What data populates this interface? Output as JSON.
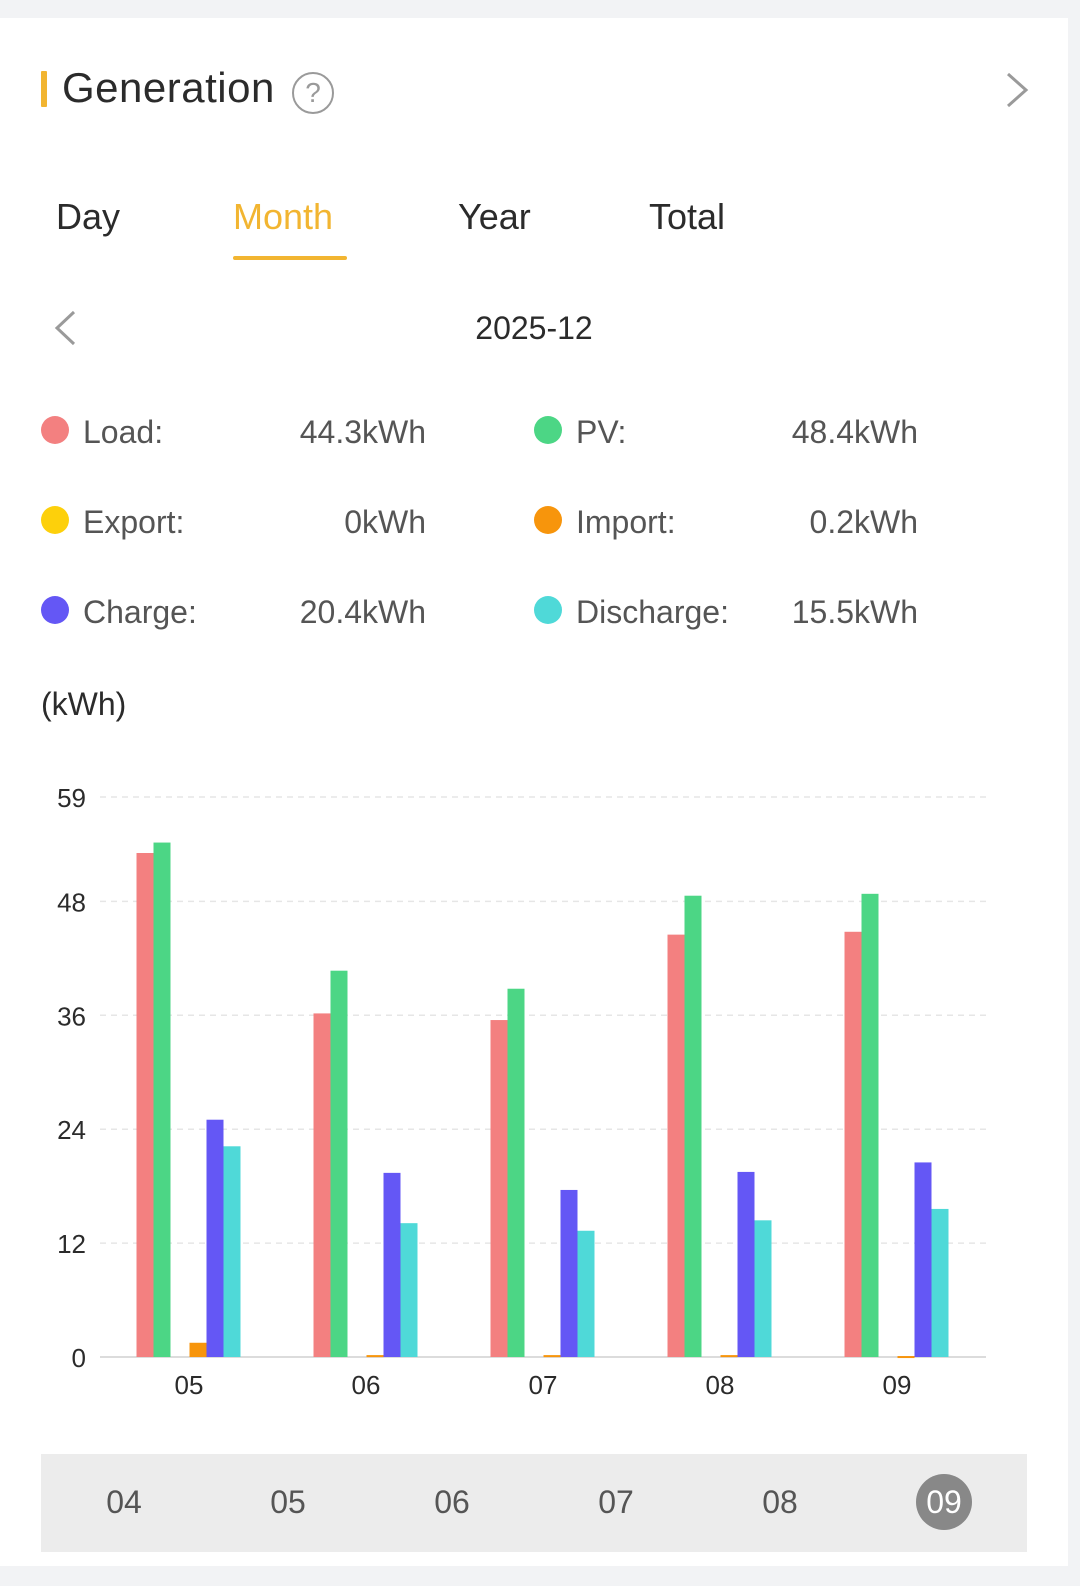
{
  "header": {
    "title": "Generation",
    "help_glyph": "?"
  },
  "tabs": [
    {
      "label": "Day"
    },
    {
      "label": "Month"
    },
    {
      "label": "Year"
    },
    {
      "label": "Total"
    }
  ],
  "active_tab": "Month",
  "period": "2025-12",
  "colors": {
    "accent": "#f2b531",
    "load": "#f38080",
    "pv": "#4cd685",
    "export": "#fdd00b",
    "import": "#f7950c",
    "charge": "#6457f5",
    "discharge": "#4fd9d8"
  },
  "stats": {
    "load": {
      "label": "Load:",
      "value": "44.3kWh"
    },
    "pv": {
      "label": "PV:",
      "value": "48.4kWh"
    },
    "export": {
      "label": "Export:",
      "value": "0kWh"
    },
    "import": {
      "label": "Import:",
      "value": "0.2kWh"
    },
    "charge": {
      "label": "Charge:",
      "value": "20.4kWh"
    },
    "discharge": {
      "label": "Discharge:",
      "value": "15.5kWh"
    }
  },
  "chart_data": {
    "type": "bar",
    "title": "",
    "ylabel": "(kWh)",
    "xlabel": "",
    "ylim": [
      0,
      60
    ],
    "yticks": [
      0,
      12,
      24,
      36,
      48,
      59
    ],
    "categories": [
      "05",
      "06",
      "07",
      "08",
      "09"
    ],
    "series": [
      {
        "name": "Load",
        "color": "#f38080",
        "values": [
          53.1,
          36.2,
          35.5,
          44.5,
          44.8
        ]
      },
      {
        "name": "PV",
        "color": "#4cd685",
        "values": [
          54.2,
          40.7,
          38.8,
          48.6,
          48.8
        ]
      },
      {
        "name": "Export",
        "color": "#fdd00b",
        "values": [
          0,
          0,
          0,
          0,
          0
        ]
      },
      {
        "name": "Import",
        "color": "#f7950c",
        "values": [
          1.5,
          0.2,
          0.2,
          0.2,
          0.1
        ]
      },
      {
        "name": "Charge",
        "color": "#6457f5",
        "values": [
          25.0,
          19.4,
          17.6,
          19.5,
          20.5
        ]
      },
      {
        "name": "Discharge",
        "color": "#4fd9d8",
        "values": [
          22.2,
          14.1,
          13.3,
          14.4,
          15.6
        ]
      }
    ],
    "grid": true
  },
  "month_selector": {
    "items": [
      "04",
      "05",
      "06",
      "07",
      "08",
      "09"
    ],
    "selected": "09"
  }
}
